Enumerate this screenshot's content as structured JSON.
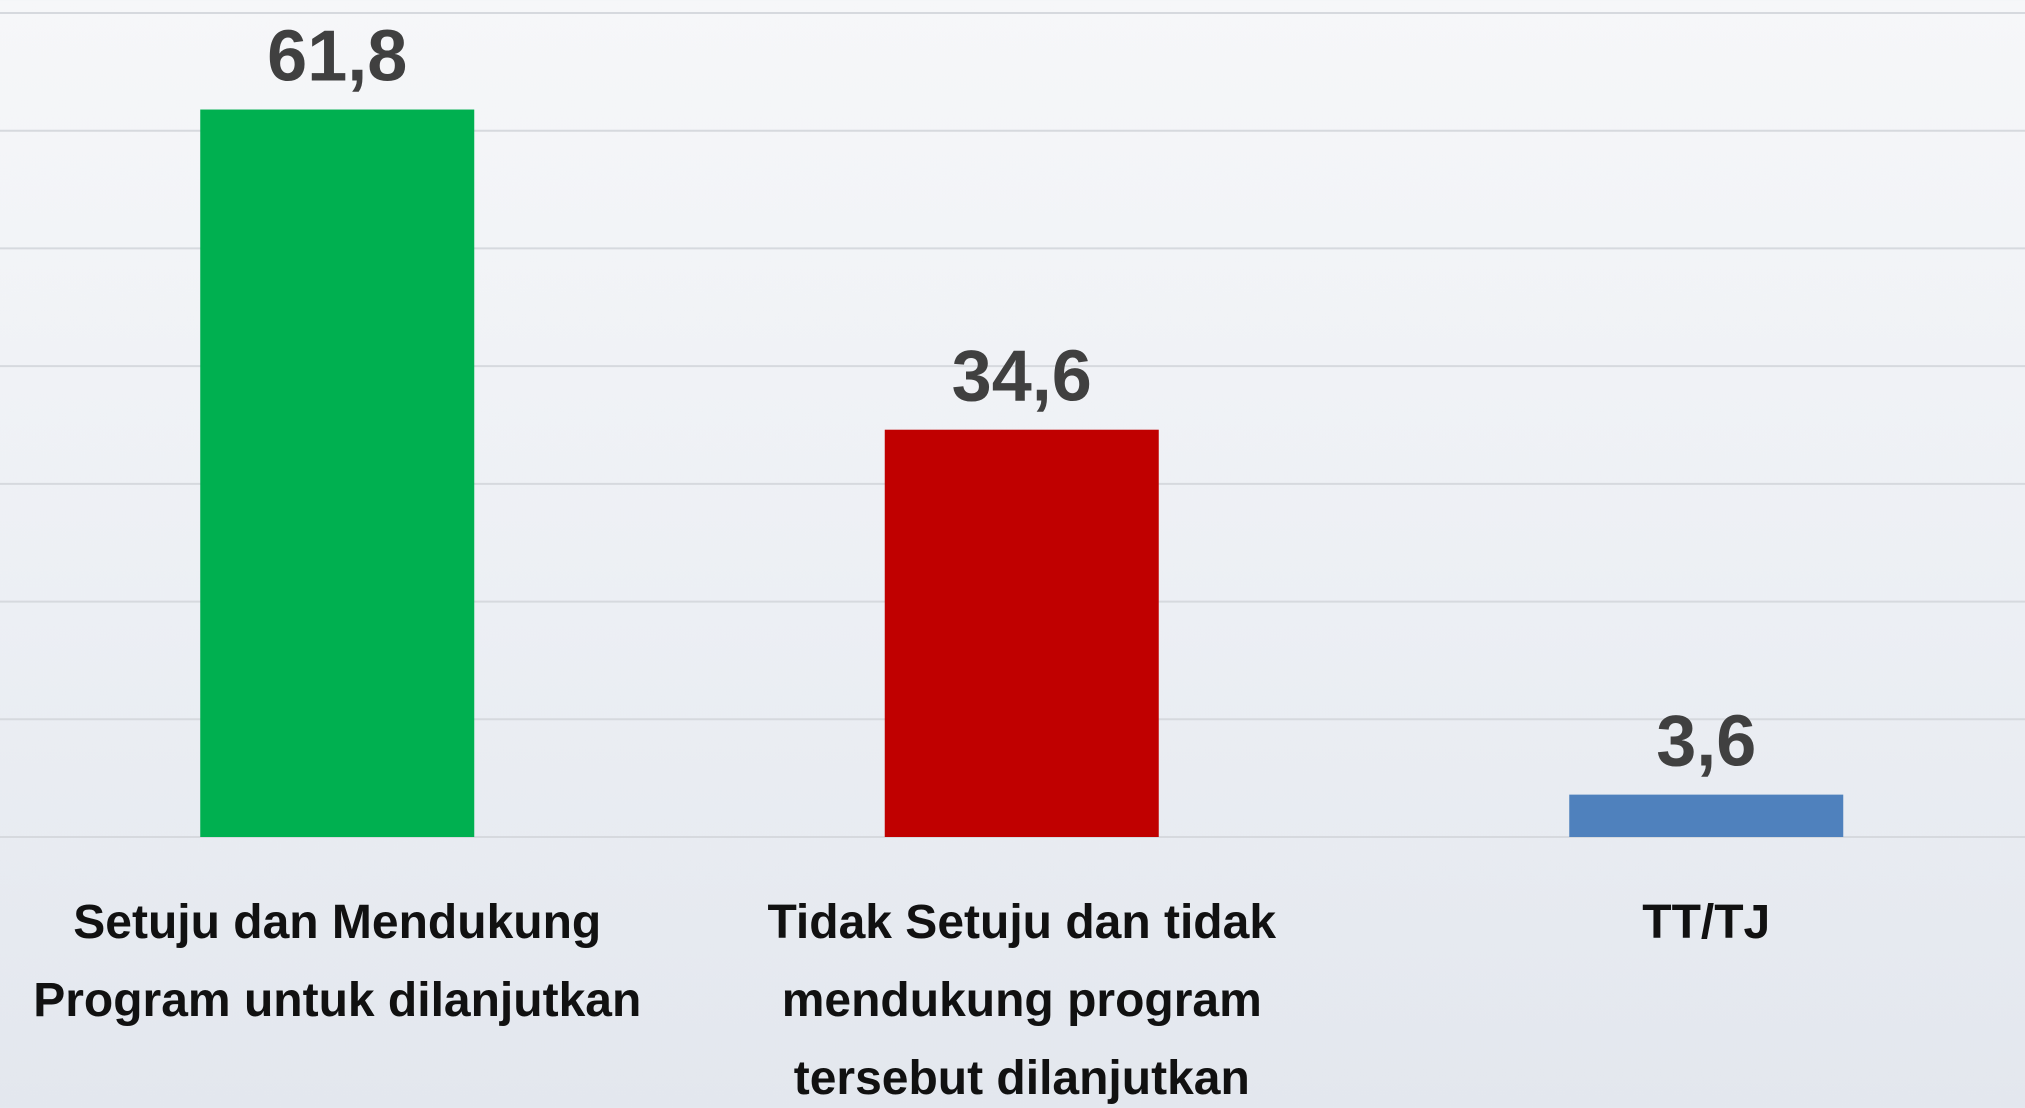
{
  "chart_data": {
    "type": "bar",
    "categories": [
      "Setuju dan Mendukung Program untuk dilanjutkan",
      "Tidak Setuju dan tidak mendukung program tersebut dilanjutkan",
      "TT/TJ"
    ],
    "values": [
      61.8,
      34.6,
      3.6
    ],
    "value_labels": [
      "61,8",
      "34,6",
      "3,6"
    ],
    "colors": [
      "#00b050",
      "#c00000",
      "#4f81bd"
    ],
    "ylim": [
      0,
      70
    ],
    "yticks": [
      0,
      10,
      20,
      30,
      40,
      50,
      60,
      70
    ],
    "grid": true
  }
}
